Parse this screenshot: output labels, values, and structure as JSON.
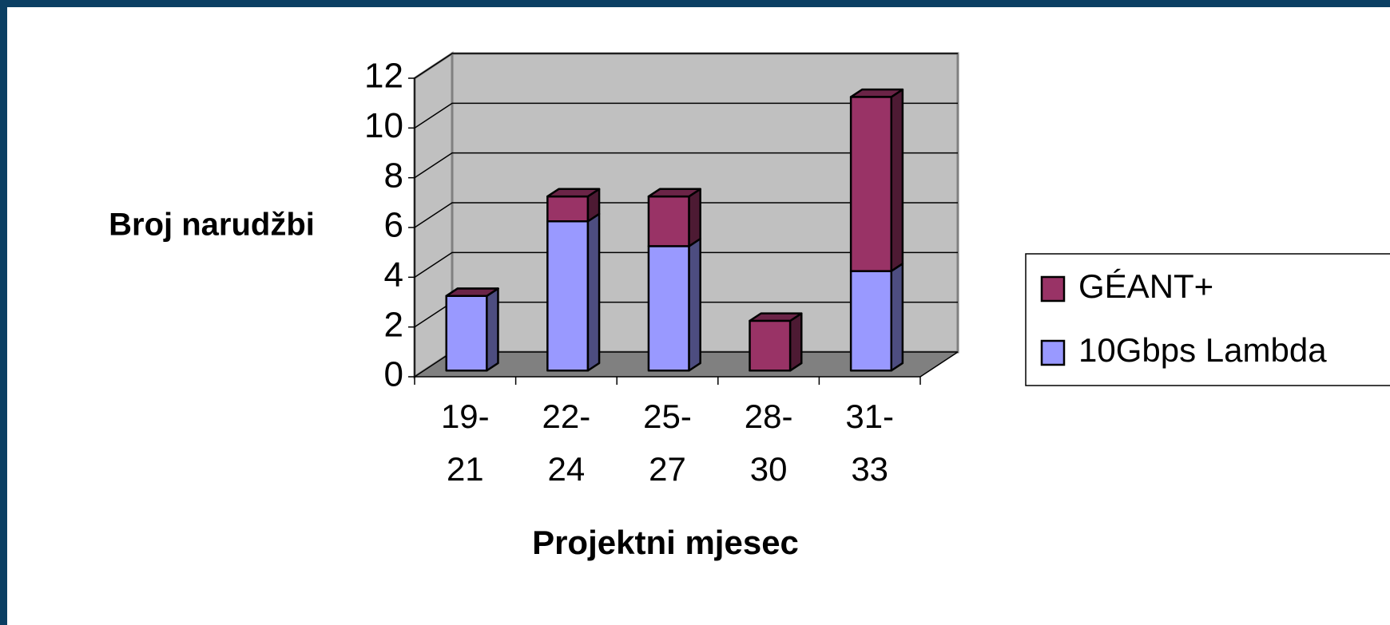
{
  "chart_data": {
    "type": "bar3d_stacked",
    "xlabel": "Projektni mjesec",
    "ylabel": "Broj narudžbi",
    "categories": [
      "19-21",
      "22-24",
      "25-27",
      "28-30",
      "31-33"
    ],
    "series": [
      {
        "name": "10Gbps Lambda",
        "color": "#9999ff",
        "values": [
          3,
          6,
          5,
          0,
          4
        ]
      },
      {
        "name": "GÉANT+",
        "color": "#993366",
        "values": [
          0,
          1,
          2,
          2,
          7
        ]
      }
    ],
    "ylim": [
      0,
      12
    ],
    "yticks": [
      0,
      2,
      4,
      6,
      8,
      10,
      12
    ],
    "grid": true,
    "legend": "right"
  }
}
